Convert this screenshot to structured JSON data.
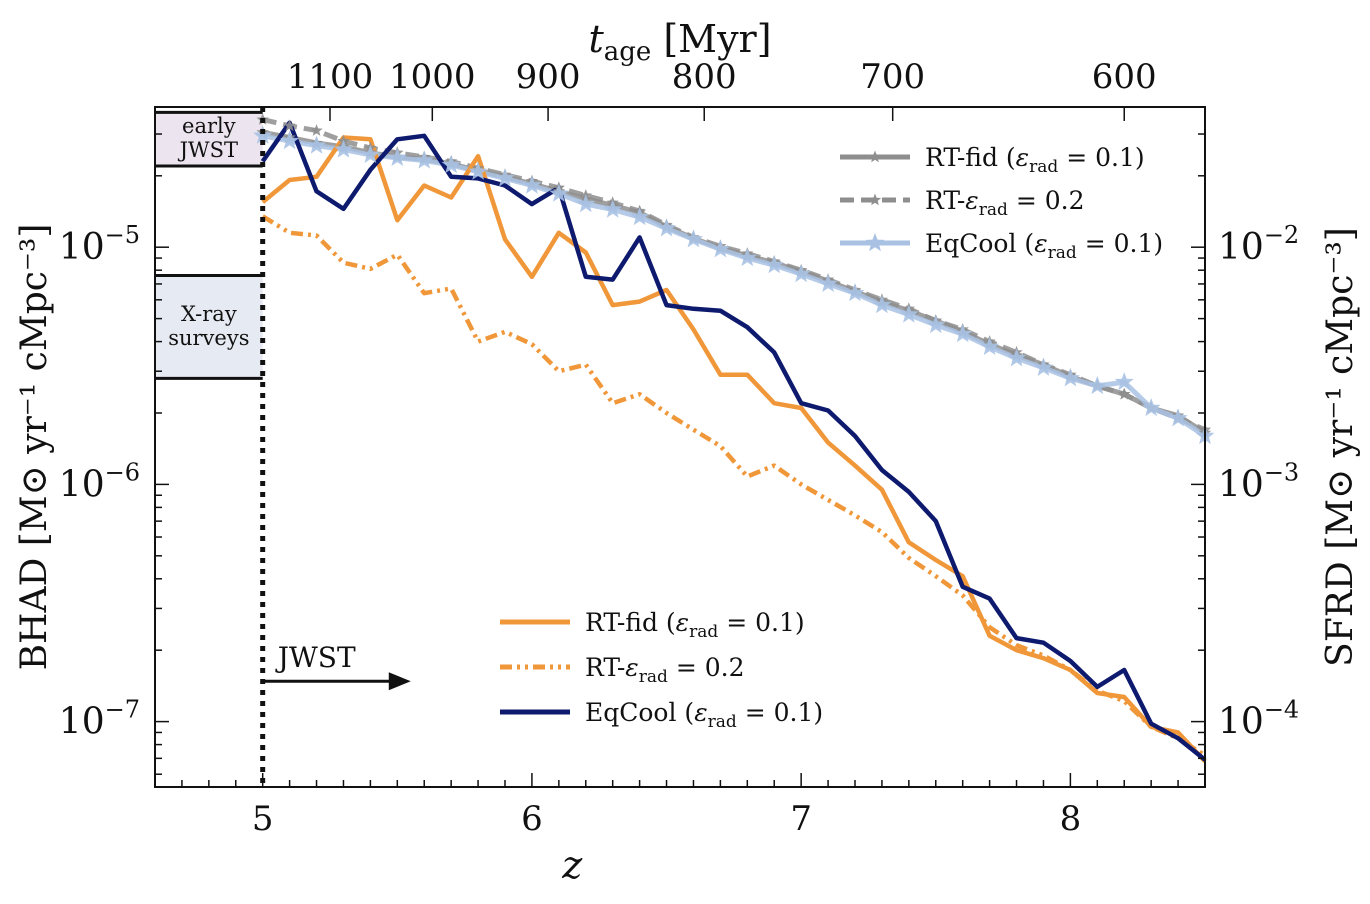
{
  "chart_data": {
    "type": "line",
    "xlabel": "z",
    "top_xlabel": "t_age [Myr]",
    "ylabel_left": "BHAD [M⊙ yr⁻¹ cMpc⁻³]",
    "ylabel_right": "SFRD [M⊙ yr⁻¹ cMpc⁻³]",
    "xlim": [
      4.6,
      8.5
    ],
    "ylim_left": [
      5.3e-08,
      3.9e-05
    ],
    "ylim_right": [
      5.3e-05,
      0.039
    ],
    "scale": "log",
    "x_ticks": [
      5,
      6,
      7,
      8
    ],
    "x_tick_labels": [
      "5",
      "6",
      "7",
      "8"
    ],
    "top_ticks_z": [
      5.25,
      5.63,
      6.06,
      6.64,
      7.34,
      8.2
    ],
    "top_tick_labels": [
      "1100",
      "1000",
      "900",
      "800",
      "700",
      "600"
    ],
    "left_tick_labels": [
      {
        "value": 1e-05,
        "base": "10",
        "exp": "−5"
      },
      {
        "value": 1e-06,
        "base": "10",
        "exp": "−6"
      },
      {
        "value": 1e-07,
        "base": "10",
        "exp": "−7"
      }
    ],
    "right_tick_labels": [
      {
        "value": 0.01,
        "base": "10",
        "exp": "−2"
      },
      {
        "value": 0.001,
        "base": "10",
        "exp": "−3"
      },
      {
        "value": 0.0001,
        "base": "10",
        "exp": "−4"
      }
    ],
    "observations": [
      {
        "label_lines": [
          "early",
          "JWST"
        ],
        "y_low": 2.2e-05,
        "y_high": 3.7e-05,
        "color": "#ece4ee"
      },
      {
        "label_lines": [
          "X-ray",
          "surveys"
        ],
        "y_low": 2.8e-06,
        "y_high": 7.6e-06,
        "color": "#e6eaf2"
      }
    ],
    "jwst_annotation": {
      "text": "JWST",
      "z_start": 5.0,
      "z_end": 5.55,
      "y": 1.48e-07
    },
    "bhad_series": [
      {
        "name": "RT-fid (εrad = 0.1)",
        "legend_main": "RT-fid (",
        "legend_eps": "ε",
        "legend_sub": "rad",
        "legend_tail": " = 0.1)",
        "color": "#f0973a",
        "style": "solid",
        "x": [
          5.0,
          5.1,
          5.2,
          5.3,
          5.4,
          5.5,
          5.6,
          5.7,
          5.8,
          5.9,
          6.0,
          6.1,
          6.2,
          6.3,
          6.4,
          6.5,
          6.6,
          6.7,
          6.8,
          6.9,
          7.0,
          7.1,
          7.2,
          7.3,
          7.4,
          7.5,
          7.6,
          7.7,
          7.8,
          7.9,
          8.0,
          8.1,
          8.2,
          8.3,
          8.4,
          8.5
        ],
        "y": [
          1.55e-05,
          1.92e-05,
          1.98e-05,
          2.9e-05,
          2.85e-05,
          1.3e-05,
          1.82e-05,
          1.62e-05,
          2.42e-05,
          1.08e-05,
          7.5e-06,
          1.15e-05,
          9.5e-06,
          5.7e-06,
          5.9e-06,
          6.6e-06,
          4.5e-06,
          2.9e-06,
          2.9e-06,
          2.2e-06,
          2.1e-06,
          1.5e-06,
          1.2e-06,
          9.5e-07,
          5.7e-07,
          4.8e-07,
          4.1e-07,
          2.3e-07,
          2e-07,
          1.85e-07,
          1.65e-07,
          1.32e-07,
          1.27e-07,
          9.5e-08,
          9e-08,
          6.8e-08
        ]
      },
      {
        "name": "RT-εrad = 0.2",
        "legend_main": "RT-",
        "legend_eps": "ε",
        "legend_sub": "rad",
        "legend_tail": " = 0.2",
        "color": "#f0973a",
        "style": "dashdot",
        "x": [
          5.0,
          5.1,
          5.2,
          5.3,
          5.4,
          5.5,
          5.6,
          5.7,
          5.8,
          5.9,
          6.0,
          6.1,
          6.2,
          6.3,
          6.4,
          6.5,
          6.6,
          6.7,
          6.8,
          6.9,
          7.0,
          7.1,
          7.2,
          7.3,
          7.4,
          7.5,
          7.6,
          7.7,
          7.8,
          7.9,
          8.0,
          8.1,
          8.2,
          8.3,
          8.4,
          8.5
        ],
        "y": [
          1.35e-05,
          1.15e-05,
          1.12e-05,
          8.6e-06,
          8.1e-06,
          9.3e-06,
          6.4e-06,
          6.7e-06,
          4e-06,
          4.4e-06,
          3.9e-06,
          3e-06,
          3.2e-06,
          2.2e-06,
          2.4e-06,
          2e-06,
          1.7e-06,
          1.45e-06,
          1.08e-06,
          1.2e-06,
          1e-06,
          8.6e-07,
          7.4e-07,
          6.3e-07,
          4.9e-07,
          4.1e-07,
          3.4e-07,
          2.5e-07,
          2.1e-07,
          1.9e-07,
          1.65e-07,
          1.35e-07,
          1.22e-07,
          9.5e-08,
          8.5e-08,
          7.2e-08
        ]
      },
      {
        "name": "EqCool (εrad = 0.1)",
        "legend_main": "EqCool (",
        "legend_eps": "ε",
        "legend_sub": "rad",
        "legend_tail": " = 0.1)",
        "color": "#0d1a6e",
        "style": "solid",
        "x": [
          5.0,
          5.1,
          5.2,
          5.3,
          5.4,
          5.5,
          5.6,
          5.7,
          5.8,
          5.9,
          6.0,
          6.1,
          6.2,
          6.3,
          6.4,
          6.5,
          6.6,
          6.7,
          6.8,
          6.9,
          7.0,
          7.1,
          7.2,
          7.3,
          7.4,
          7.5,
          7.6,
          7.7,
          7.8,
          7.9,
          8.0,
          8.1,
          8.2,
          8.3,
          8.4,
          8.5
        ],
        "y": [
          2.3e-05,
          3.35e-05,
          1.72e-05,
          1.45e-05,
          2.12e-05,
          2.85e-05,
          2.95e-05,
          1.98e-05,
          1.95e-05,
          1.82e-05,
          1.52e-05,
          1.78e-05,
          7.5e-06,
          7.3e-06,
          1.1e-05,
          5.7e-06,
          5.5e-06,
          5.4e-06,
          4.6e-06,
          3.6e-06,
          2.2e-06,
          2.05e-06,
          1.6e-06,
          1.15e-06,
          9.3e-07,
          7e-07,
          3.7e-07,
          3.3e-07,
          2.25e-07,
          2.15e-07,
          1.8e-07,
          1.4e-07,
          1.65e-07,
          9.8e-08,
          8.5e-08,
          6.9e-08
        ]
      }
    ],
    "sfrd_series": [
      {
        "name": "RT-fid (εrad = 0.1)",
        "legend_main": "RT-fid (",
        "legend_eps": "ε",
        "legend_sub": "rad",
        "legend_tail": " = 0.1)",
        "color": "#8e8e8e",
        "style": "solid",
        "marker": "star",
        "x": [
          5.0,
          5.1,
          5.2,
          5.3,
          5.4,
          5.5,
          5.6,
          5.7,
          5.8,
          5.9,
          6.0,
          6.1,
          6.2,
          6.3,
          6.4,
          6.5,
          6.6,
          6.7,
          6.8,
          6.9,
          7.0,
          7.1,
          7.2,
          7.3,
          7.4,
          7.5,
          7.6,
          7.7,
          7.8,
          7.9,
          8.0,
          8.1,
          8.2,
          8.3,
          8.4,
          8.5
        ],
        "y": [
          0.0305,
          0.029,
          0.0275,
          0.0265,
          0.025,
          0.024,
          0.0235,
          0.0225,
          0.021,
          0.0198,
          0.0185,
          0.0172,
          0.016,
          0.015,
          0.014,
          0.0122,
          0.0109,
          0.0099,
          0.0092,
          0.0086,
          0.0079,
          0.0072,
          0.0065,
          0.0059,
          0.0054,
          0.0049,
          0.0044,
          0.0039,
          0.0035,
          0.0032,
          0.00285,
          0.0026,
          0.0024,
          0.0021,
          0.00195,
          0.00165
        ]
      },
      {
        "name": "RT-εrad = 0.2",
        "legend_main": "RT-",
        "legend_eps": "ε",
        "legend_sub": "rad",
        "legend_tail": " = 0.2",
        "color": "#8e8e8e",
        "style": "dashed",
        "marker": "star",
        "x": [
          5.0,
          5.1,
          5.2,
          5.3,
          5.4,
          5.5,
          5.6,
          5.7,
          5.8,
          5.9,
          6.0,
          6.1,
          6.2,
          6.3,
          6.4,
          6.5,
          6.6,
          6.7,
          6.8,
          6.9,
          7.0,
          7.1,
          7.2,
          7.3,
          7.4,
          7.5,
          7.6,
          7.7,
          7.8,
          7.9,
          8.0,
          8.1,
          8.2,
          8.3,
          8.4,
          8.5
        ],
        "y": [
          0.0345,
          0.0325,
          0.031,
          0.028,
          0.0262,
          0.025,
          0.024,
          0.023,
          0.0215,
          0.0202,
          0.019,
          0.0178,
          0.0165,
          0.0154,
          0.0142,
          0.0124,
          0.011,
          0.0101,
          0.0094,
          0.0087,
          0.008,
          0.0073,
          0.0066,
          0.006,
          0.0055,
          0.0049,
          0.0045,
          0.004,
          0.0036,
          0.0032,
          0.0029,
          0.0026,
          0.0024,
          0.0021,
          0.0019,
          0.0017
        ]
      },
      {
        "name": "EqCool (εrad = 0.1)",
        "legend_main": "EqCool (",
        "legend_eps": "ε",
        "legend_sub": "rad",
        "legend_tail": " = 0.1)",
        "color": "#a9c2e4",
        "style": "solid",
        "marker": "star",
        "x": [
          5.0,
          5.1,
          5.2,
          5.3,
          5.4,
          5.5,
          5.6,
          5.7,
          5.8,
          5.9,
          6.0,
          6.1,
          6.2,
          6.3,
          6.4,
          6.5,
          6.6,
          6.7,
          6.8,
          6.9,
          7.0,
          7.1,
          7.2,
          7.3,
          7.4,
          7.5,
          7.6,
          7.7,
          7.8,
          7.9,
          8.0,
          8.1,
          8.2,
          8.3,
          8.4,
          8.5
        ],
        "y": [
          0.0295,
          0.028,
          0.0268,
          0.0258,
          0.0245,
          0.0238,
          0.0232,
          0.0222,
          0.0208,
          0.0195,
          0.0182,
          0.0168,
          0.0152,
          0.0144,
          0.0134,
          0.012,
          0.0108,
          0.0098,
          0.009,
          0.0084,
          0.0077,
          0.007,
          0.0064,
          0.0057,
          0.0052,
          0.0047,
          0.0043,
          0.0038,
          0.0034,
          0.0031,
          0.0028,
          0.0026,
          0.0027,
          0.0021,
          0.0019,
          0.0016
        ]
      }
    ]
  }
}
